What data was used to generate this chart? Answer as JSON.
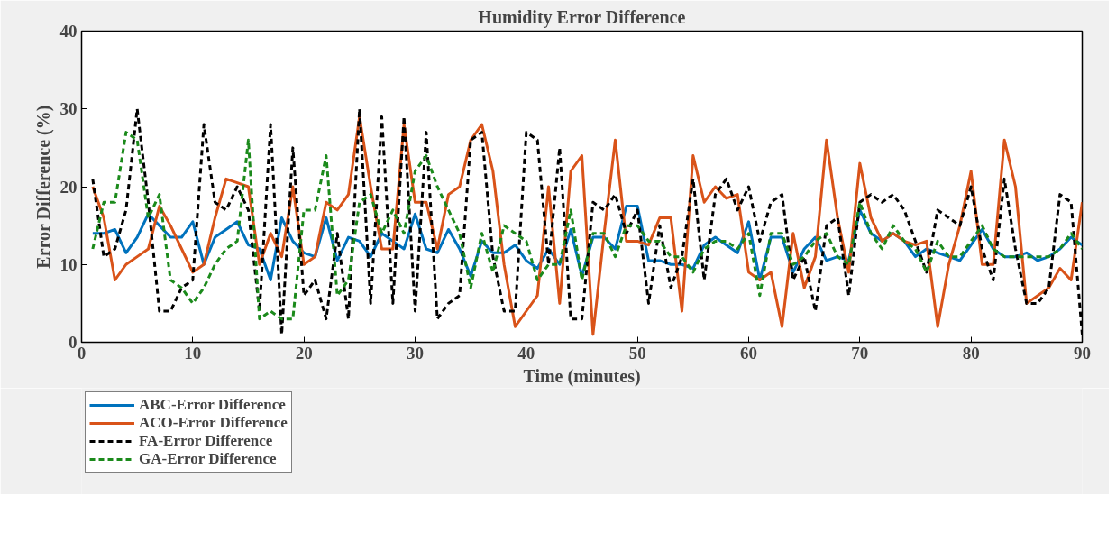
{
  "chart_data": {
    "type": "line",
    "title": "Humidity Error Difference",
    "xlabel": "Time (minutes)",
    "ylabel": "Error Difference (%)",
    "x": [
      1,
      2,
      3,
      4,
      5,
      6,
      7,
      8,
      9,
      10,
      11,
      12,
      13,
      14,
      15,
      16,
      17,
      18,
      19,
      20,
      21,
      22,
      23,
      24,
      25,
      26,
      27,
      28,
      29,
      30,
      31,
      32,
      33,
      34,
      35,
      36,
      37,
      38,
      39,
      40,
      41,
      42,
      43,
      44,
      45,
      46,
      47,
      48,
      49,
      50,
      51,
      52,
      53,
      54,
      55,
      56,
      57,
      58,
      59,
      60,
      61,
      62,
      63,
      64,
      65,
      66,
      67,
      68,
      69,
      70,
      71,
      72,
      73,
      74,
      75,
      76,
      77,
      78,
      79,
      80,
      81,
      82,
      83,
      84,
      85,
      86,
      87,
      88,
      89,
      90
    ],
    "series": [
      {
        "name": "ABC-Error Difference",
        "color": "#0072bd",
        "line_style": "solid",
        "values": [
          14,
          14,
          14.5,
          11.5,
          13.5,
          16.5,
          15,
          13.5,
          13.5,
          15.5,
          10,
          13.5,
          14.5,
          15.5,
          12.5,
          12,
          8,
          16,
          13,
          11.5,
          11,
          16,
          10.5,
          13.5,
          13,
          11,
          14,
          13,
          12,
          16.5,
          12,
          11.5,
          14.5,
          12,
          8.5,
          13,
          11.5,
          11.5,
          12.5,
          10.5,
          9.5,
          12,
          10,
          14.5,
          8.5,
          13.5,
          13.5,
          12,
          17.5,
          17.5,
          10.5,
          10.5,
          10,
          10,
          9.5,
          12.5,
          13.5,
          12.5,
          11.5,
          15.5,
          8,
          13.5,
          13.5,
          9,
          12,
          13.5,
          10.5,
          11,
          10.5,
          17,
          14,
          13,
          14,
          13,
          11,
          12,
          11.5,
          11,
          10.5,
          12.5,
          14.5,
          12,
          11,
          11,
          11.5,
          10.5,
          11,
          12,
          13.5,
          12.5
        ]
      },
      {
        "name": "ACO-Error Difference",
        "color": "#d95319",
        "line_style": "solid",
        "values": [
          20,
          16,
          8,
          10,
          11,
          12,
          17.5,
          15,
          12,
          9,
          10,
          16,
          21,
          20.5,
          20,
          10,
          14,
          11,
          20,
          10,
          11,
          18,
          17,
          19,
          29,
          20,
          12,
          12,
          28,
          18,
          18,
          12,
          19,
          20,
          26,
          28,
          22,
          10,
          2,
          4,
          6,
          20,
          5,
          22,
          24,
          1,
          14,
          26,
          13,
          13,
          12.5,
          16,
          16,
          4,
          24,
          18,
          20,
          18.5,
          19,
          9,
          8,
          9,
          2,
          14,
          7,
          11,
          26,
          16,
          9,
          23,
          16,
          13,
          14,
          13,
          12.5,
          13,
          2,
          10,
          15,
          22,
          10,
          10,
          26,
          20,
          5,
          6,
          7,
          9.5,
          8,
          18
        ]
      },
      {
        "name": "FA-Error Difference",
        "color": "#000000",
        "line_style": "dashed",
        "values": [
          21,
          11,
          12,
          17,
          30,
          18,
          4,
          4,
          7,
          8,
          28,
          18,
          17,
          20,
          17,
          4,
          28,
          1,
          25,
          6,
          8,
          3,
          14,
          3,
          30,
          5,
          29,
          5,
          29,
          4,
          27,
          3,
          5,
          6,
          26,
          27,
          11,
          4,
          4,
          27,
          26,
          10,
          25,
          3,
          3,
          18,
          17,
          19,
          14,
          17,
          5,
          15,
          7,
          11,
          21,
          8,
          19,
          21,
          17,
          20,
          13,
          18,
          19,
          8,
          11,
          4,
          15,
          16,
          6,
          18,
          19,
          18,
          19,
          17,
          13,
          9,
          17,
          16,
          15,
          20,
          12,
          8,
          21,
          12,
          5,
          5,
          7,
          19,
          18,
          1
        ]
      },
      {
        "name": "GA-Error Difference",
        "color": "#1b8a1b",
        "line_style": "dashed",
        "values": [
          12,
          18,
          18,
          27,
          26,
          16,
          19,
          8,
          7,
          5,
          7,
          10,
          12,
          13,
          26,
          3,
          4,
          3,
          3,
          17,
          17,
          24,
          6,
          8,
          18,
          19,
          14,
          17,
          14,
          22,
          24,
          20,
          17,
          14,
          7,
          14,
          9,
          15,
          14,
          13,
          8,
          10,
          10,
          17,
          8,
          14,
          14,
          11,
          15,
          15,
          13,
          13,
          11,
          11,
          9,
          12,
          13,
          13,
          12,
          14,
          6,
          14,
          14,
          10,
          11,
          13,
          14,
          11,
          10,
          18,
          14,
          12,
          15,
          13,
          12,
          9,
          13,
          11,
          11,
          13,
          15,
          12,
          11,
          11,
          11,
          11,
          11,
          12,
          14,
          12
        ]
      }
    ],
    "xlim": [
      0,
      90
    ],
    "xticks": [
      0,
      10,
      20,
      30,
      40,
      50,
      60,
      70,
      80,
      90
    ],
    "ylim": [
      0,
      40
    ],
    "yticks": [
      0,
      10,
      20,
      30,
      40
    ],
    "grid": false,
    "legend": "bottom left",
    "marker": "none"
  }
}
